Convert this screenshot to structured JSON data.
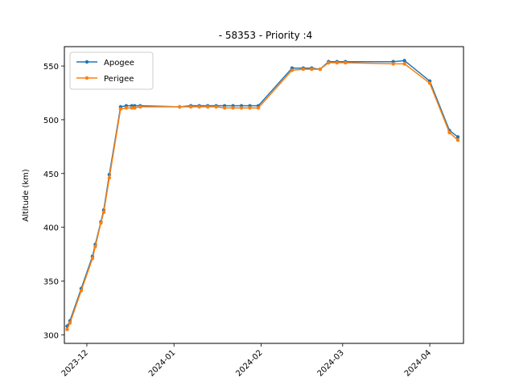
{
  "chart_data": {
    "type": "line",
    "title": "- 58353 - Priority :4",
    "xlabel": "",
    "ylabel": "Altitude (km)",
    "xlim": [
      "2023-11-23",
      "2024-04-13"
    ],
    "ylim": [
      292,
      568
    ],
    "yticks": [
      300,
      350,
      400,
      450,
      500,
      550
    ],
    "xticks": [
      "2023-12-01",
      "2024-01-01",
      "2024-02-01",
      "2024-03-01",
      "2024-04-01"
    ],
    "xtick_labels": [
      "2023-12",
      "2024-01",
      "2024-02",
      "2024-03",
      "2024-04"
    ],
    "grid": false,
    "legend_position": "top-left",
    "series": [
      {
        "name": "Apogee",
        "color": "#1f77b4",
        "points": [
          {
            "x": "2023-11-24",
            "y": 308
          },
          {
            "x": "2023-11-25",
            "y": 313
          },
          {
            "x": "2023-11-29",
            "y": 343
          },
          {
            "x": "2023-12-03",
            "y": 373
          },
          {
            "x": "2023-12-04",
            "y": 384
          },
          {
            "x": "2023-12-06",
            "y": 405
          },
          {
            "x": "2023-12-07",
            "y": 416
          },
          {
            "x": "2023-12-09",
            "y": 449
          },
          {
            "x": "2023-12-13",
            "y": 512
          },
          {
            "x": "2023-12-15",
            "y": 513
          },
          {
            "x": "2023-12-17",
            "y": 513
          },
          {
            "x": "2023-12-18",
            "y": 513
          },
          {
            "x": "2023-12-20",
            "y": 513
          },
          {
            "x": "2024-01-03",
            "y": 512
          },
          {
            "x": "2024-01-07",
            "y": 513
          },
          {
            "x": "2024-01-10",
            "y": 513
          },
          {
            "x": "2024-01-13",
            "y": 513
          },
          {
            "x": "2024-01-16",
            "y": 513
          },
          {
            "x": "2024-01-19",
            "y": 513
          },
          {
            "x": "2024-01-22",
            "y": 513
          },
          {
            "x": "2024-01-25",
            "y": 513
          },
          {
            "x": "2024-01-28",
            "y": 513
          },
          {
            "x": "2024-01-31",
            "y": 513
          },
          {
            "x": "2024-02-12",
            "y": 548
          },
          {
            "x": "2024-02-16",
            "y": 548
          },
          {
            "x": "2024-02-19",
            "y": 548
          },
          {
            "x": "2024-02-22",
            "y": 547
          },
          {
            "x": "2024-02-25",
            "y": 554
          },
          {
            "x": "2024-02-28",
            "y": 554
          },
          {
            "x": "2024-03-02",
            "y": 554
          },
          {
            "x": "2024-03-19",
            "y": 554
          },
          {
            "x": "2024-03-23",
            "y": 555
          },
          {
            "x": "2024-04-01",
            "y": 536
          },
          {
            "x": "2024-04-08",
            "y": 490
          },
          {
            "x": "2024-04-11",
            "y": 484
          }
        ]
      },
      {
        "name": "Perigee",
        "color": "#ff7f0e",
        "points": [
          {
            "x": "2023-11-24",
            "y": 305
          },
          {
            "x": "2023-11-25",
            "y": 311
          },
          {
            "x": "2023-11-29",
            "y": 341
          },
          {
            "x": "2023-12-03",
            "y": 371
          },
          {
            "x": "2023-12-04",
            "y": 382
          },
          {
            "x": "2023-12-06",
            "y": 404
          },
          {
            "x": "2023-12-07",
            "y": 414
          },
          {
            "x": "2023-12-09",
            "y": 446
          },
          {
            "x": "2023-12-13",
            "y": 510
          },
          {
            "x": "2023-12-15",
            "y": 511
          },
          {
            "x": "2023-12-17",
            "y": 511
          },
          {
            "x": "2023-12-18",
            "y": 511
          },
          {
            "x": "2023-12-20",
            "y": 512
          },
          {
            "x": "2024-01-03",
            "y": 512
          },
          {
            "x": "2024-01-07",
            "y": 512
          },
          {
            "x": "2024-01-10",
            "y": 512
          },
          {
            "x": "2024-01-13",
            "y": 512
          },
          {
            "x": "2024-01-16",
            "y": 512
          },
          {
            "x": "2024-01-19",
            "y": 511
          },
          {
            "x": "2024-01-22",
            "y": 511
          },
          {
            "x": "2024-01-25",
            "y": 511
          },
          {
            "x": "2024-01-28",
            "y": 511
          },
          {
            "x": "2024-01-31",
            "y": 511
          },
          {
            "x": "2024-02-12",
            "y": 546
          },
          {
            "x": "2024-02-16",
            "y": 547
          },
          {
            "x": "2024-02-19",
            "y": 547
          },
          {
            "x": "2024-02-22",
            "y": 547
          },
          {
            "x": "2024-02-25",
            "y": 553
          },
          {
            "x": "2024-02-28",
            "y": 553
          },
          {
            "x": "2024-03-02",
            "y": 553
          },
          {
            "x": "2024-03-19",
            "y": 552
          },
          {
            "x": "2024-03-23",
            "y": 552
          },
          {
            "x": "2024-04-01",
            "y": 534
          },
          {
            "x": "2024-04-08",
            "y": 488
          },
          {
            "x": "2024-04-11",
            "y": 481
          }
        ]
      }
    ]
  }
}
